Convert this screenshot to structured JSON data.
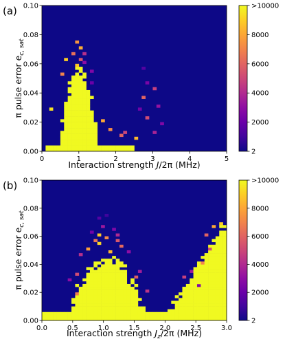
{
  "chart_data": [
    {
      "type": "heatmap",
      "panel_label": "(a)",
      "xlabel": "Interaction strength J/2π (MHz)",
      "xlabel_parts": {
        "pre": "Interaction strength ",
        "sym": "J",
        "post": "/2π (MHz)"
      },
      "ylabel": "π pulse error e",
      "ylabel_parts": {
        "main": "π pulse error e",
        "sub": "c, sat"
      },
      "xlim": [
        0,
        5
      ],
      "ylim": [
        0,
        0.1
      ],
      "xticks": [
        "0",
        "1",
        "2",
        "3",
        "4",
        "5"
      ],
      "xtick_values": [
        0,
        1,
        2,
        3,
        4,
        5
      ],
      "yticks": [
        "0.00",
        "0.02",
        "0.04",
        "0.06",
        "0.08",
        "0.10"
      ],
      "ytick_values": [
        0,
        0.02,
        0.04,
        0.06,
        0.08,
        0.1
      ],
      "colorbar": {
        "range": [
          2,
          10000
        ],
        "ticks": [
          "2",
          "2000",
          "4000",
          "6000",
          "8000",
          ">10000"
        ],
        "tick_values": [
          2,
          2000,
          4000,
          6000,
          8000,
          10000
        ],
        "colormap": "plasma"
      },
      "grid": {
        "nx": 50,
        "ny": 50,
        "x_edges": [
          0,
          5
        ],
        "y_edges": [
          0,
          0.1
        ],
        "background": 2,
        "regions": [
          {
            "kind": "peak",
            "center": 1.0,
            "half_width": 0.55,
            "height": 0.055,
            "value": 10000
          },
          {
            "kind": "band",
            "x_from": 0.1,
            "x_to": 2.5,
            "y_to": 0.005,
            "value": 10000
          }
        ],
        "scatter_cells": [
          [
            0.9,
            0.074,
            7500
          ],
          [
            1.0,
            0.07,
            8200
          ],
          [
            0.8,
            0.066,
            6400
          ],
          [
            1.1,
            0.066,
            4200
          ],
          [
            0.7,
            0.062,
            9000
          ],
          [
            1.0,
            0.062,
            5600
          ],
          [
            1.2,
            0.06,
            3000
          ],
          [
            0.9,
            0.058,
            8800
          ],
          [
            1.3,
            0.054,
            2600
          ],
          [
            0.6,
            0.052,
            7000
          ],
          [
            1.4,
            0.046,
            2000
          ],
          [
            2.8,
            0.056,
            1500
          ],
          [
            2.9,
            0.046,
            2400
          ],
          [
            3.0,
            0.042,
            4800
          ],
          [
            2.7,
            0.036,
            6000
          ],
          [
            3.1,
            0.03,
            3200
          ],
          [
            2.6,
            0.028,
            2200
          ],
          [
            2.9,
            0.022,
            5200
          ],
          [
            3.2,
            0.018,
            2600
          ],
          [
            3.0,
            0.012,
            3800
          ],
          [
            0.3,
            0.028,
            9500
          ],
          [
            1.6,
            0.02,
            8000
          ],
          [
            1.8,
            0.014,
            7200
          ],
          [
            2.1,
            0.01,
            6000
          ],
          [
            2.3,
            0.012,
            5000
          ],
          [
            2.5,
            0.008,
            8500
          ]
        ]
      }
    },
    {
      "type": "heatmap",
      "panel_label": "(b)",
      "xlabel": "Interaction strength Jz/2π (MHz)",
      "xlabel_parts": {
        "pre": "Interaction strength ",
        "sym": "J",
        "sub": "z",
        "post": "/2π (MHz)"
      },
      "ylabel": "π pulse error e",
      "ylabel_parts": {
        "main": "π pulse error e",
        "sub": "c, sat"
      },
      "xlim": [
        0,
        3
      ],
      "ylim": [
        0,
        0.1
      ],
      "xticks": [
        "0.0",
        "0.5",
        "1.0",
        "1.5",
        "2.0",
        "2.5",
        "3.0"
      ],
      "xtick_values": [
        0,
        0.5,
        1,
        1.5,
        2,
        2.5,
        3
      ],
      "yticks": [
        "0.00",
        "0.02",
        "0.04",
        "0.06",
        "0.08",
        "0.10"
      ],
      "ytick_values": [
        0,
        0.02,
        0.04,
        0.06,
        0.08,
        0.1
      ],
      "colorbar": {
        "range": [
          2,
          10000
        ],
        "ticks": [
          "2",
          "2000",
          "4000",
          "6000",
          "8000",
          ">10000"
        ],
        "tick_values": [
          2,
          2000,
          4000,
          6000,
          8000,
          10000
        ],
        "colormap": "plasma"
      },
      "grid": {
        "nx": 50,
        "ny": 50,
        "x_edges": [
          0,
          3
        ],
        "y_edges": [
          0,
          0.1
        ],
        "background": 2,
        "regions": [
          {
            "kind": "peak",
            "center": 1.05,
            "half_width": 0.65,
            "height": 0.045,
            "value": 10000
          },
          {
            "kind": "ramp",
            "x_from": 1.95,
            "x_to": 3.0,
            "y_at_from": 0.0,
            "y_at_to": 0.07,
            "value": 10000
          },
          {
            "kind": "band",
            "x_from": 0.0,
            "x_to": 3.0,
            "y_to": 0.006,
            "value": 10000
          }
        ],
        "scatter_cells": [
          [
            0.95,
            0.06,
            8800
          ],
          [
            1.05,
            0.058,
            7200
          ],
          [
            0.85,
            0.056,
            6600
          ],
          [
            1.2,
            0.056,
            5600
          ],
          [
            1.0,
            0.066,
            3400
          ],
          [
            1.15,
            0.064,
            2600
          ],
          [
            0.8,
            0.062,
            2200
          ],
          [
            1.25,
            0.06,
            4000
          ],
          [
            0.75,
            0.05,
            7800
          ],
          [
            1.3,
            0.052,
            6200
          ],
          [
            1.4,
            0.048,
            3000
          ],
          [
            0.65,
            0.046,
            4200
          ],
          [
            0.95,
            0.054,
            9200
          ],
          [
            1.1,
            0.048,
            8400
          ],
          [
            0.9,
            0.072,
            1500
          ],
          [
            1.05,
            0.074,
            1000
          ],
          [
            0.55,
            0.032,
            5200
          ],
          [
            1.5,
            0.03,
            5800
          ],
          [
            1.6,
            0.034,
            3600
          ],
          [
            0.45,
            0.028,
            3000
          ],
          [
            0.55,
            0.018,
            6800
          ],
          [
            1.7,
            0.02,
            4400
          ],
          [
            2.65,
            0.06,
            6000
          ],
          [
            2.7,
            0.05,
            5200
          ],
          [
            2.6,
            0.04,
            7000
          ],
          [
            2.45,
            0.034,
            3400
          ],
          [
            2.3,
            0.03,
            4800
          ],
          [
            2.55,
            0.024,
            2600
          ],
          [
            2.9,
            0.068,
            9000
          ],
          [
            2.8,
            0.066,
            8000
          ]
        ]
      }
    }
  ]
}
